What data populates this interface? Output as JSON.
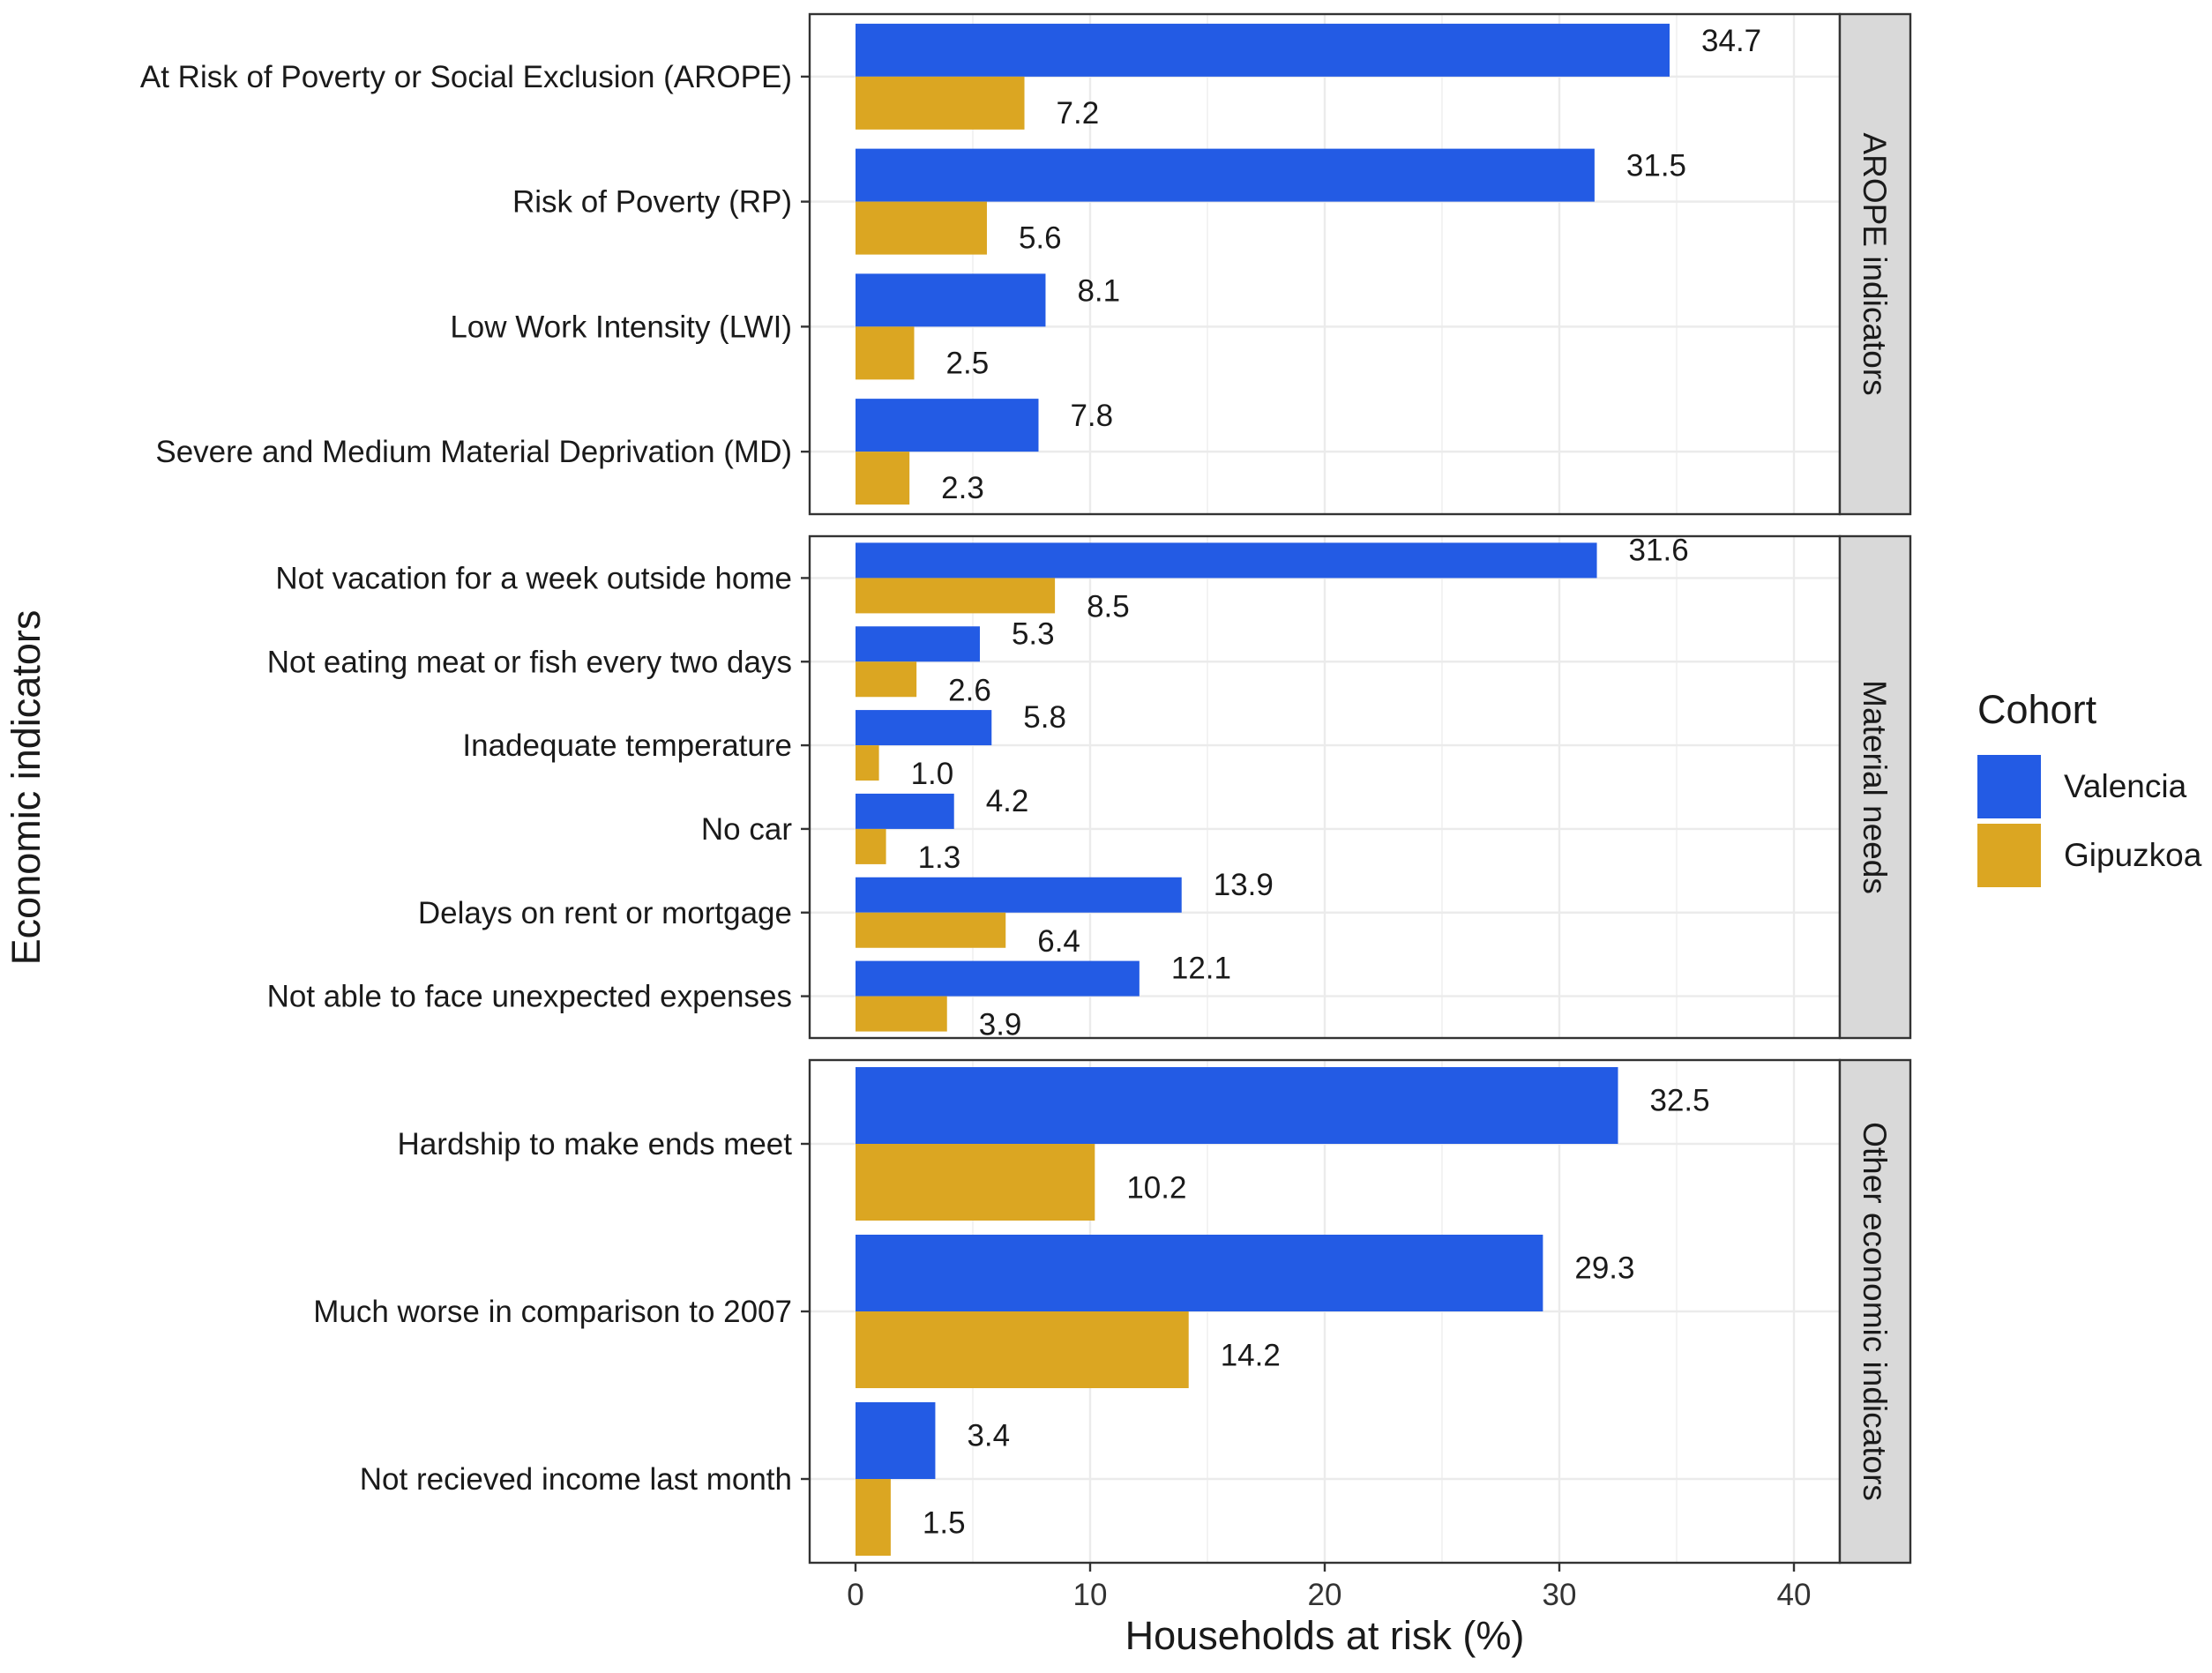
{
  "chart_data": {
    "type": "bar",
    "orientation": "horizontal",
    "xlabel": "Households at risk (%)",
    "ylabel": "Economic indicators",
    "xlim": [
      0,
      42
    ],
    "xticks": [
      0,
      10,
      20,
      30,
      40
    ],
    "grid": true,
    "legend": {
      "title": "Cohort",
      "position": "right",
      "entries": [
        {
          "name": "Valencia",
          "color": "#235BE4"
        },
        {
          "name": "Gipuzkoa",
          "color": "#DBA622"
        }
      ]
    },
    "panels": [
      {
        "title": "AROPE indicators",
        "categories": [
          {
            "label": "At Risk of Poverty or Social Exclusion (AROPE)",
            "valencia": 34.7,
            "gipuzkoa": 7.2,
            "valencia_label": "34.7",
            "gipuzkoa_label": "7.2"
          },
          {
            "label": "Risk of Poverty (RP)",
            "valencia": 31.5,
            "gipuzkoa": 5.6,
            "valencia_label": "31.5",
            "gipuzkoa_label": "5.6"
          },
          {
            "label": "Low Work Intensity (LWI)",
            "valencia": 8.1,
            "gipuzkoa": 2.5,
            "valencia_label": "8.1",
            "gipuzkoa_label": "2.5"
          },
          {
            "label": "Severe and Medium Material Deprivation (MD)",
            "valencia": 7.8,
            "gipuzkoa": 2.3,
            "valencia_label": "7.8",
            "gipuzkoa_label": "2.3"
          }
        ]
      },
      {
        "title": "Material needs",
        "categories": [
          {
            "label": "Not vacation for a week outside home",
            "valencia": 31.6,
            "gipuzkoa": 8.5,
            "valencia_label": "31.6",
            "gipuzkoa_label": "8.5"
          },
          {
            "label": "Not eating meat or fish every two days",
            "valencia": 5.3,
            "gipuzkoa": 2.6,
            "valencia_label": "5.3",
            "gipuzkoa_label": "2.6"
          },
          {
            "label": "Inadequate temperature",
            "valencia": 5.8,
            "gipuzkoa": 1.0,
            "valencia_label": "5.8",
            "gipuzkoa_label": "1.0"
          },
          {
            "label": "No car",
            "valencia": 4.2,
            "gipuzkoa": 1.3,
            "valencia_label": "4.2",
            "gipuzkoa_label": "1.3"
          },
          {
            "label": "Delays on rent or mortgage",
            "valencia": 13.9,
            "gipuzkoa": 6.4,
            "valencia_label": "13.9",
            "gipuzkoa_label": "6.4"
          },
          {
            "label": "Not able to face unexpected expenses",
            "valencia": 12.1,
            "gipuzkoa": 3.9,
            "valencia_label": "12.1",
            "gipuzkoa_label": "3.9"
          }
        ]
      },
      {
        "title": "Other economic indicators",
        "categories": [
          {
            "label": "Hardship to make ends meet",
            "valencia": 32.5,
            "gipuzkoa": 10.2,
            "valencia_label": "32.5",
            "gipuzkoa_label": "10.2"
          },
          {
            "label": "Much worse in comparison to 2007",
            "valencia": 29.3,
            "gipuzkoa": 14.2,
            "valencia_label": "29.3",
            "gipuzkoa_label": "14.2"
          },
          {
            "label": "Not recieved income last month",
            "valencia": 3.4,
            "gipuzkoa": 1.5,
            "valencia_label": "3.4",
            "gipuzkoa_label": "1.5"
          }
        ]
      }
    ]
  }
}
